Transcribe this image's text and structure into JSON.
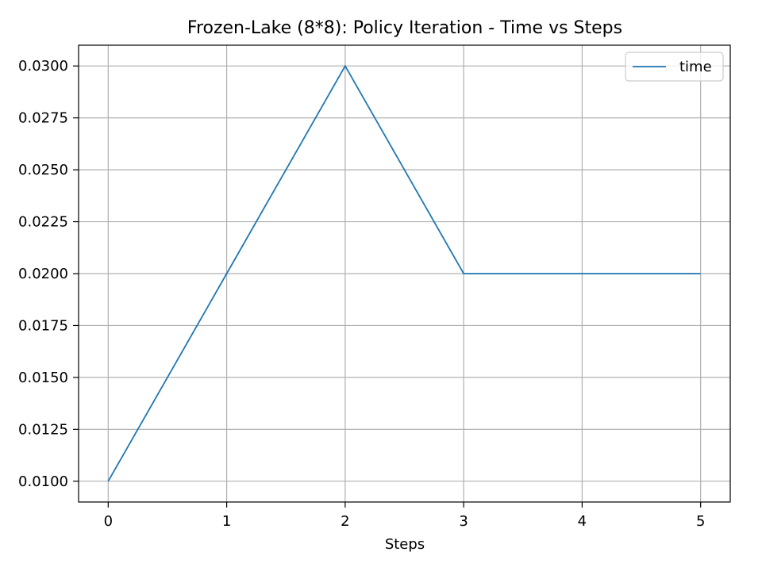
{
  "chart_data": {
    "type": "line",
    "title": "Frozen-Lake (8*8): Policy Iteration - Time vs Steps",
    "xlabel": "Steps",
    "ylabel": "",
    "xlim": [
      -0.25,
      5.25
    ],
    "ylim": [
      0.009,
      0.031
    ],
    "x_ticks": [
      0,
      1,
      2,
      3,
      4,
      5
    ],
    "x_tick_labels": [
      "0",
      "1",
      "2",
      "3",
      "4",
      "5"
    ],
    "y_ticks": [
      0.01,
      0.0125,
      0.015,
      0.0175,
      0.02,
      0.0225,
      0.025,
      0.0275,
      0.03
    ],
    "y_tick_labels": [
      "0.0100",
      "0.0125",
      "0.0150",
      "0.0175",
      "0.0200",
      "0.0225",
      "0.0250",
      "0.0275",
      "0.0300"
    ],
    "grid": true,
    "legend_position": "top-right",
    "series": [
      {
        "name": "time",
        "color": "#1f77b4",
        "x": [
          0,
          1,
          2,
          3,
          4,
          5
        ],
        "y": [
          0.01,
          0.02,
          0.03,
          0.02,
          0.02,
          0.02
        ]
      }
    ]
  }
}
